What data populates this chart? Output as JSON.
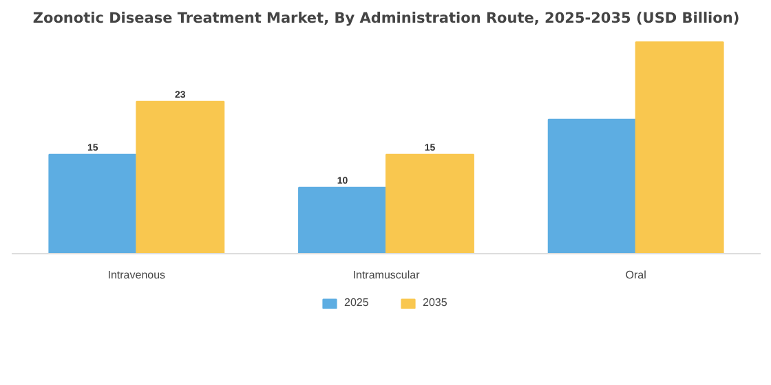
{
  "chart_data": {
    "type": "bar",
    "title": "Zoonotic Disease Treatment Market, By Administration Route, 2025-2035 (USD Billion)",
    "categories": [
      "Intravenous",
      "Intramuscular",
      "Oral"
    ],
    "series": [
      {
        "name": "2025",
        "color": "#5dade2",
        "values": [
          15,
          10,
          20.3
        ],
        "value_labels": [
          "15",
          "10",
          null
        ]
      },
      {
        "name": "2035",
        "color": "#f9c74f",
        "values": [
          23,
          15,
          32
        ],
        "value_labels": [
          "23",
          "15",
          null
        ]
      }
    ],
    "grid": false,
    "legend": "bottom",
    "tick_labels": "x"
  }
}
